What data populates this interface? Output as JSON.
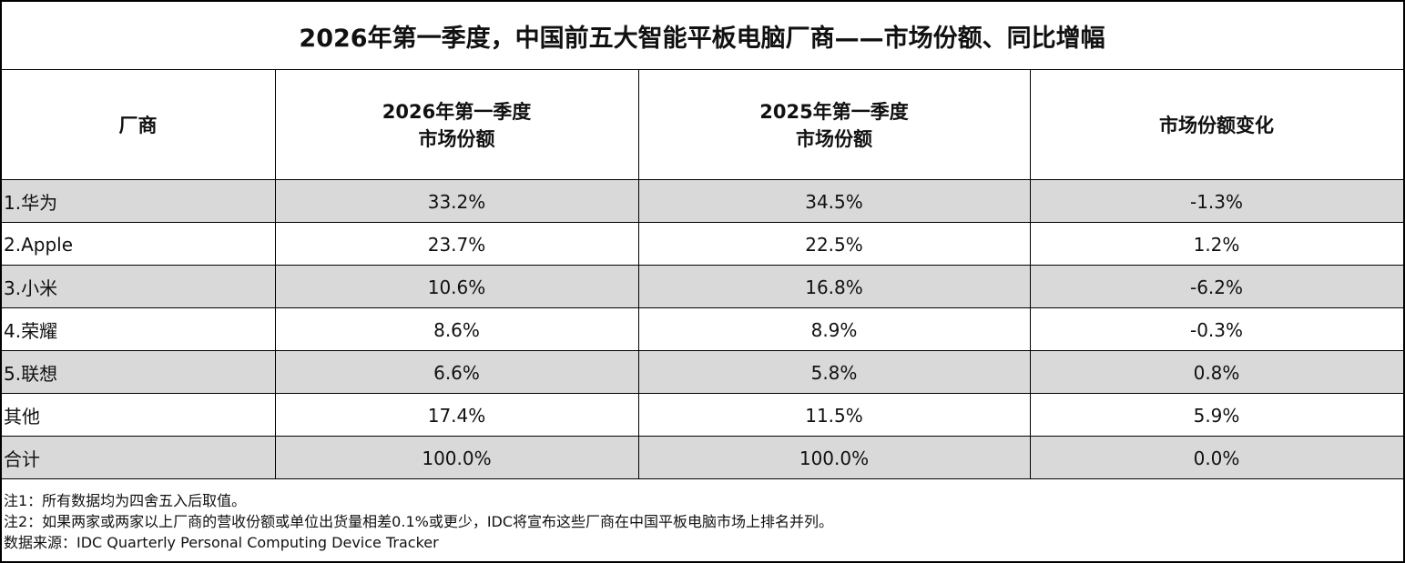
{
  "header": {
    "title": "2026年第一季度，中国前五大智能平板电脑厂商——市场份额、同比增幅"
  },
  "table": {
    "columns": [
      [
        "厂商"
      ],
      [
        "2026年第一季度",
        "市场份额"
      ],
      [
        "2025年第一季度",
        "市场份额"
      ],
      [
        "市场份额变化"
      ]
    ],
    "rows": [
      [
        "1.华为",
        "33.2%",
        "34.5%",
        "-1.3%"
      ],
      [
        "2.Apple",
        "23.7%",
        "22.5%",
        "1.2%"
      ],
      [
        "3.小米",
        "10.6%",
        "16.8%",
        "-6.2%"
      ],
      [
        "4.荣耀",
        "8.6%",
        "8.9%",
        "-0.3%"
      ],
      [
        "5.联想",
        "6.6%",
        "5.8%",
        "0.8%"
      ],
      [
        "其他",
        "17.4%",
        "11.5%",
        "5.9%"
      ],
      [
        "合计",
        "100.0%",
        "100.0%",
        "0.0%"
      ]
    ]
  },
  "notes": [
    "注1：所有数据均为四舍五入后取值。",
    "注2：如果两家或两家以上厂商的营收份额或单位出货量相差0.1%或更少，IDC将宣布这些厂商在中国平板电脑市场上排名并列。",
    "数据来源：IDC Quarterly Personal Computing Device Tracker"
  ]
}
